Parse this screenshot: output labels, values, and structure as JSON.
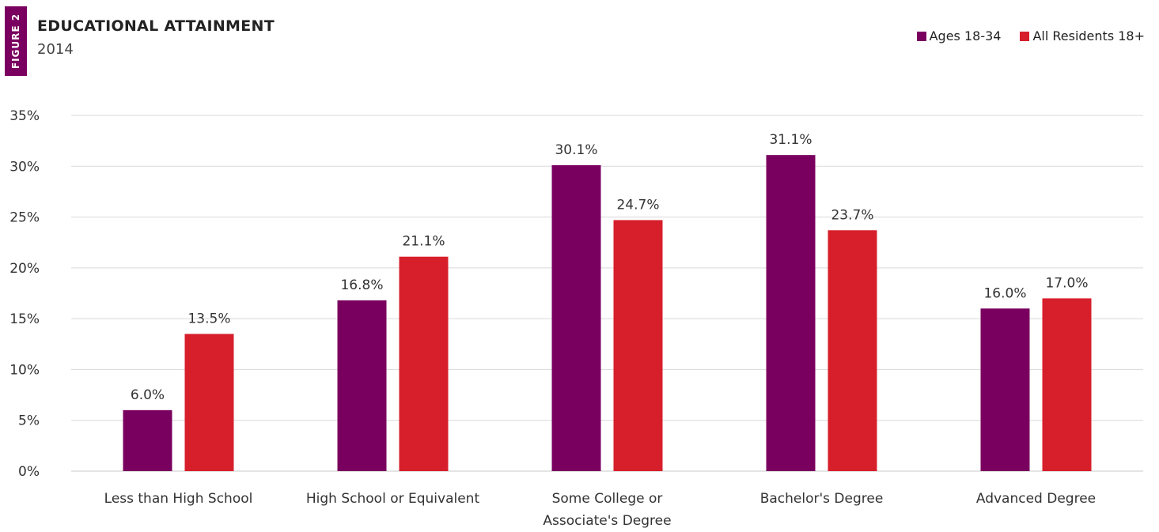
{
  "figure_label": "FIGURE 2",
  "colors": {
    "accent": "#7a0060",
    "series_1": "#7a0060",
    "series_2": "#d71f2b"
  },
  "chart_data": {
    "type": "bar",
    "title": "EDUCATIONAL ATTAINMENT",
    "subtitle": "2014",
    "xlabel": "",
    "ylabel": "",
    "ylim": [
      0,
      35
    ],
    "yticks": [
      "0%",
      "5%",
      "10%",
      "15%",
      "20%",
      "25%",
      "30%",
      "35%"
    ],
    "ytick_values": [
      0,
      5,
      10,
      15,
      20,
      25,
      30,
      35
    ],
    "grid": true,
    "legend_position": "top-right",
    "categories": [
      [
        "Less than High School"
      ],
      [
        "High School or Equivalent"
      ],
      [
        "Some College or",
        "Associate's Degree"
      ],
      [
        "Bachelor's Degree"
      ],
      [
        "Advanced Degree"
      ]
    ],
    "series": [
      {
        "name": "Ages 18-34",
        "color": "#7a0060",
        "values": [
          6.0,
          16.8,
          30.1,
          31.1,
          16.0
        ],
        "labels": [
          "6.0%",
          "16.8%",
          "30.1%",
          "31.1%",
          "16.0%"
        ]
      },
      {
        "name": "All Residents 18+",
        "color": "#d71f2b",
        "values": [
          13.5,
          21.1,
          24.7,
          23.7,
          17.0
        ],
        "labels": [
          "13.5%",
          "21.1%",
          "24.7%",
          "23.7%",
          "17.0%"
        ]
      }
    ]
  }
}
